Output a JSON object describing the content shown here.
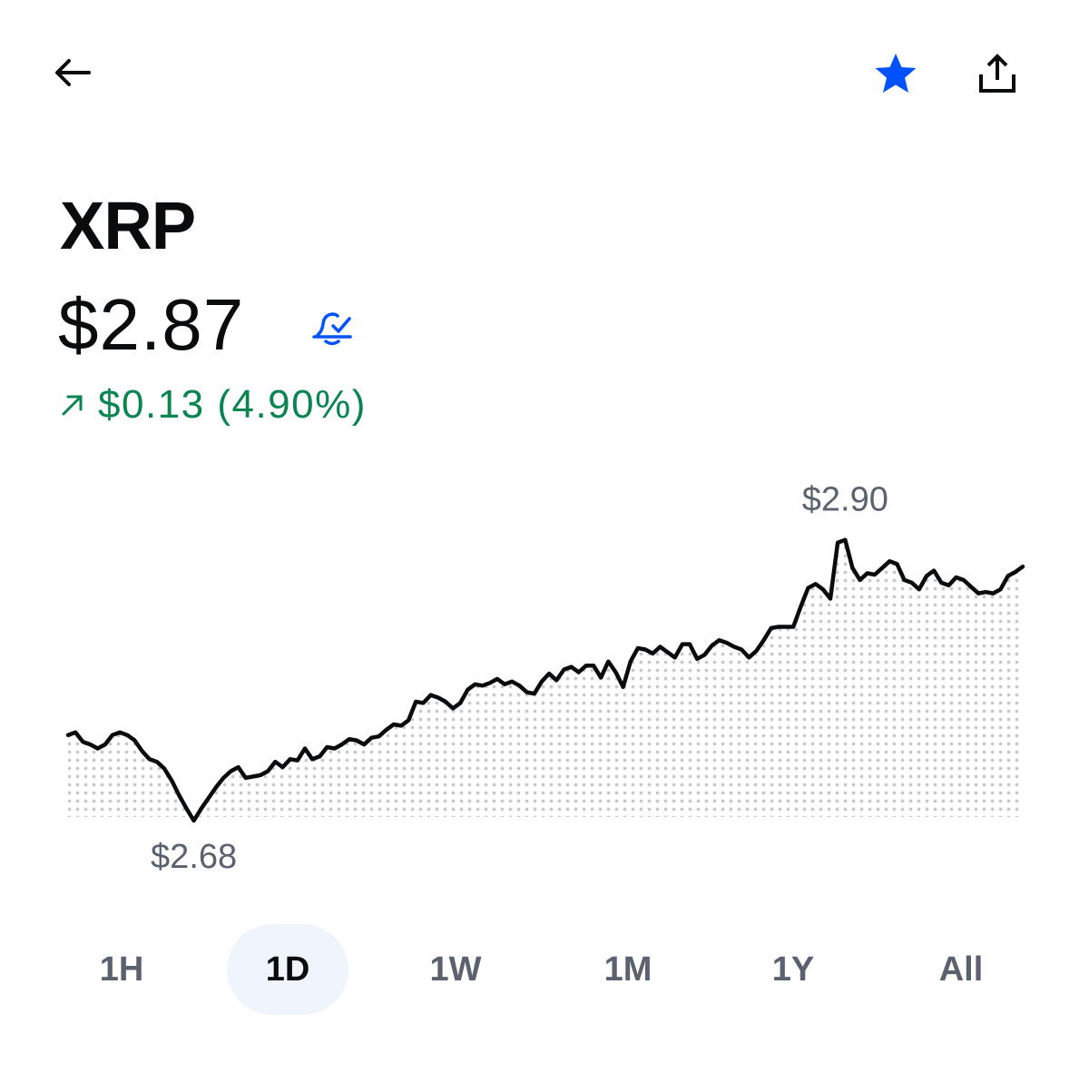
{
  "asset": {
    "name": "XRP",
    "price": "$2.87",
    "change": "$0.13 (4.90%)",
    "change_color": "#098551"
  },
  "colors": {
    "accent": "#0052ff",
    "text": "#0a0b0d",
    "muted": "#5b616e",
    "chart_line": "#0a0b0d",
    "chart_fill_dots": "#c8c9cc",
    "active_tab_bg": "#f0f4fd"
  },
  "icons": {
    "back": "arrow-left-icon",
    "watchlist": "star-filled-icon",
    "share": "share-upload-icon",
    "alert": "bell-check-icon",
    "change": "arrow-up-right-icon"
  },
  "chart_data": {
    "type": "line",
    "high_label": "$2.90",
    "low_label": "$2.68",
    "high": 2.9,
    "low": 2.68,
    "ylim": [
      2.68,
      2.9
    ],
    "grid": false,
    "fill": "dotted",
    "y": [
      2.744,
      2.746,
      2.739,
      2.737,
      2.734,
      2.737,
      2.744,
      2.746,
      2.744,
      2.74,
      2.732,
      2.726,
      2.724,
      2.719,
      2.71,
      2.699,
      2.689,
      2.68,
      2.689,
      2.697,
      2.705,
      2.712,
      2.717,
      2.72,
      2.712,
      2.713,
      2.714,
      2.717,
      2.724,
      2.72,
      2.726,
      2.725,
      2.734,
      2.726,
      2.728,
      2.735,
      2.734,
      2.737,
      2.741,
      2.74,
      2.737,
      2.742,
      2.743,
      2.748,
      2.752,
      2.751,
      2.755,
      2.769,
      2.768,
      2.774,
      2.772,
      2.769,
      2.764,
      2.768,
      2.778,
      2.782,
      2.781,
      2.783,
      2.786,
      2.782,
      2.784,
      2.781,
      2.776,
      2.775,
      2.784,
      2.79,
      2.785,
      2.793,
      2.795,
      2.791,
      2.796,
      2.796,
      2.787,
      2.799,
      2.791,
      2.78,
      2.799,
      2.809,
      2.808,
      2.805,
      2.81,
      2.806,
      2.802,
      2.812,
      2.812,
      2.801,
      2.804,
      2.811,
      2.815,
      2.813,
      2.81,
      2.808,
      2.802,
      2.807,
      2.815,
      2.824,
      2.825,
      2.825,
      2.825,
      2.84,
      2.854,
      2.857,
      2.853,
      2.846,
      2.888,
      2.89,
      2.869,
      2.86,
      2.865,
      2.864,
      2.869,
      2.874,
      2.872,
      2.86,
      2.858,
      2.853,
      2.863,
      2.867,
      2.858,
      2.856,
      2.862,
      2.86,
      2.855,
      2.85,
      2.851,
      2.85,
      2.853,
      2.863,
      2.866,
      2.87
    ]
  },
  "timeframes": [
    {
      "label": "1H",
      "active": false
    },
    {
      "label": "1D",
      "active": true
    },
    {
      "label": "1W",
      "active": false
    },
    {
      "label": "1M",
      "active": false
    },
    {
      "label": "1Y",
      "active": false
    },
    {
      "label": "All",
      "active": false
    }
  ]
}
